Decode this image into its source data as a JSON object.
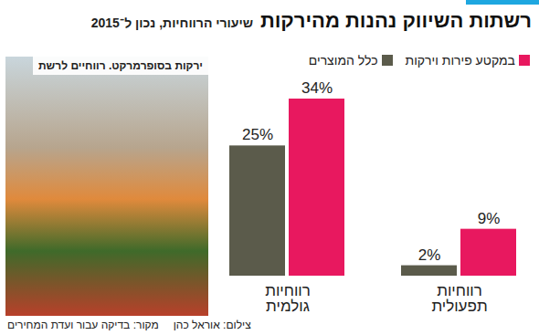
{
  "chart_data": {
    "type": "bar",
    "title": "רשתות השיווק נהנות מהירקות",
    "subtitle": "שיעורי הרווחיות, נכון ל־2015",
    "categories": [
      "רווחיות\nגולמית",
      "רווחיות\nתפעולית"
    ],
    "series": [
      {
        "name": "כלל המוצרים",
        "color": "#5b5b4b",
        "values": [
          25,
          2
        ],
        "value_labels": [
          "25%",
          "2%"
        ]
      },
      {
        "name": "במקטע פירות וירקות",
        "color": "#e8185f",
        "values": [
          34,
          9
        ],
        "value_labels": [
          "34%",
          "9%"
        ]
      }
    ],
    "ylim": [
      0,
      34
    ],
    "yticks": [],
    "grid": false,
    "data_labels": true,
    "tick_labels": "x",
    "legend": "top-right"
  },
  "photo_caption": "ירקות בסופרמרקט. רווחיים לרשת",
  "credit": "צילום: אוראל כהן",
  "source": "מקור: בדיקה עבור ועדת המחירים"
}
